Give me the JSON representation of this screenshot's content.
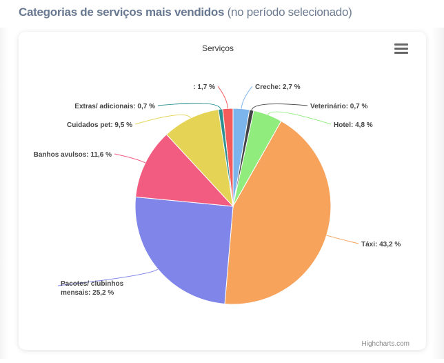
{
  "heading": {
    "bold": "Categorias de serviços mais vendidos",
    "normal": " (no período selecionado)"
  },
  "chart_data": {
    "type": "pie",
    "title": "Serviços",
    "credits": "Highcharts.com",
    "value_suffix": " %",
    "slices": [
      {
        "name": "Creche",
        "value": "2,7",
        "y": 2.7,
        "color": "#7cb5ec"
      },
      {
        "name": "Veterinário",
        "value": "0,7",
        "y": 0.7,
        "color": "#434348"
      },
      {
        "name": "Hotel",
        "value": "4,8",
        "y": 4.8,
        "color": "#90ed7d"
      },
      {
        "name": "Táxi",
        "value": "43,2",
        "y": 43.2,
        "color": "#f7a35c"
      },
      {
        "name": "Pacotes/ clubinhos mensais",
        "value": "25,2",
        "y": 25.2,
        "color": "#8085e9"
      },
      {
        "name": "Banhos avulsos",
        "value": "11,6",
        "y": 11.6,
        "color": "#f15c80"
      },
      {
        "name": "Cuidados pet",
        "value": "9,5",
        "y": 9.5,
        "color": "#e4d354"
      },
      {
        "name": "Extras/ adicionais",
        "value": "0,7",
        "y": 0.7,
        "color": "#2b908f"
      },
      {
        "name": "",
        "value": "1,7",
        "y": 1.7,
        "color": "#f45b5b"
      }
    ]
  },
  "icons": {
    "menu": "hamburger-menu-icon"
  }
}
